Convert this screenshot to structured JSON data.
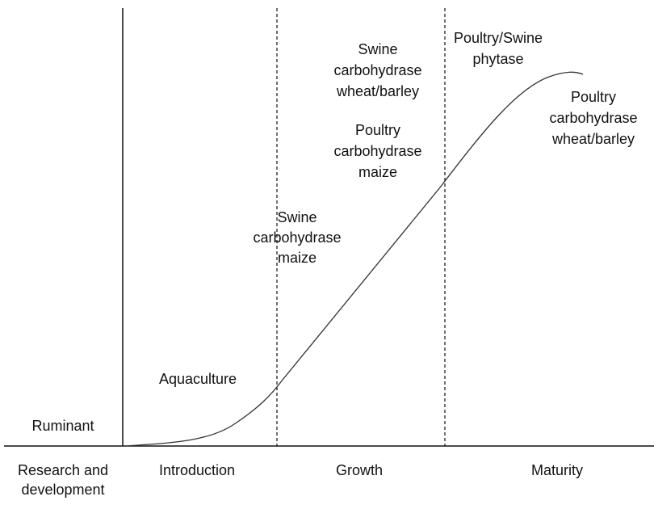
{
  "stages": [
    {
      "lines": [
        "Research and",
        "development"
      ]
    },
    {
      "lines": [
        "Introduction"
      ]
    },
    {
      "lines": [
        "Growth"
      ]
    },
    {
      "lines": [
        "Maturity"
      ]
    }
  ],
  "products": [
    {
      "lines": [
        "Ruminant"
      ]
    },
    {
      "lines": [
        "Aquaculture"
      ]
    },
    {
      "lines": [
        "Swine",
        "carbohydrase",
        "maize"
      ]
    },
    {
      "lines": [
        "Swine",
        "carbohydrase",
        "wheat/barley"
      ]
    },
    {
      "lines": [
        "Poultry",
        "carbohydrase",
        "maize"
      ]
    },
    {
      "lines": [
        "Poultry/Swine",
        "phytase"
      ]
    },
    {
      "lines": [
        "Poultry",
        "carbohydrase",
        "wheat/barley"
      ]
    }
  ]
}
